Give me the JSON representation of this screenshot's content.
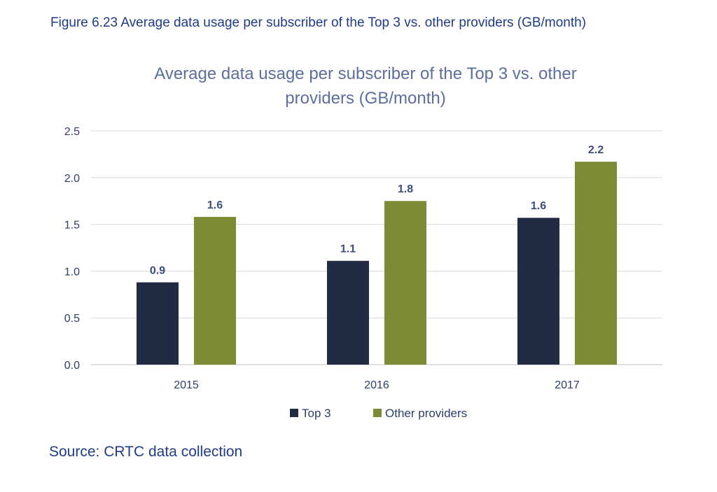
{
  "figure_caption": "Figure 6.23 Average data usage per subscriber of the Top 3 vs. other providers (GB/month)",
  "source": "Source: CRTC data collection",
  "chart_data": {
    "type": "bar",
    "title": "Average data usage per subscriber of the Top 3 vs. other providers (GB/month)",
    "title_lines": [
      "Average data usage per subscriber of the Top 3 vs. other",
      "providers (GB/month)"
    ],
    "categories": [
      "2015",
      "2016",
      "2017"
    ],
    "series": [
      {
        "name": "Top 3",
        "values": [
          0.88,
          1.11,
          1.57
        ],
        "labels": [
          "0.9",
          "1.1",
          "1.6"
        ],
        "color": "#222b44"
      },
      {
        "name": "Other providers",
        "values": [
          1.58,
          1.75,
          2.17
        ],
        "labels": [
          "1.6",
          "1.8",
          "2.2"
        ],
        "color": "#7d8b35"
      }
    ],
    "ylim": [
      0,
      2.5
    ],
    "yticks": [
      "0.0",
      "0.5",
      "1.0",
      "1.5",
      "2.0",
      "2.5"
    ],
    "xlabel": "",
    "ylabel": "",
    "grid": true,
    "legend": "bottom"
  }
}
